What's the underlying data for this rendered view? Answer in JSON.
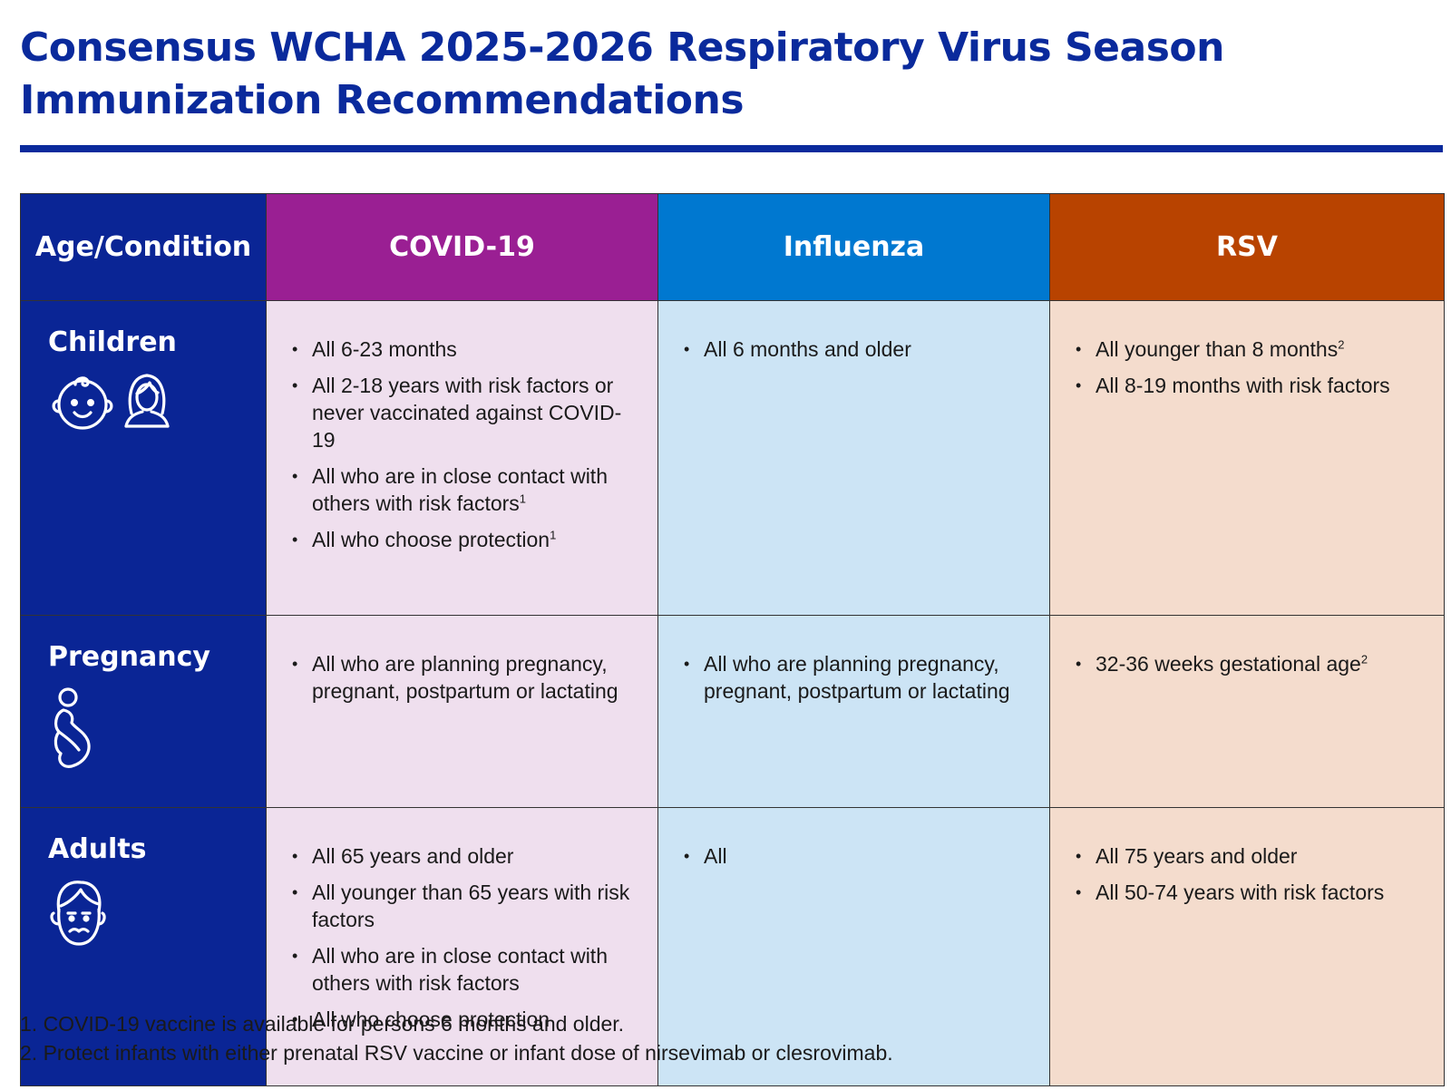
{
  "title": {
    "line1": "Consensus WCHA 2025-2026 Respiratory Virus Season",
    "line2": "Immunization Recommendations"
  },
  "colors": {
    "title": "#0a2a9c",
    "age_header": "#0a2595",
    "covid_header": "#9a1f93",
    "influenza_header": "#0078d0",
    "rsv_header": "#b84300",
    "covid_cell": "#efdfee",
    "influenza_cell": "#cce4f5",
    "rsv_cell": "#f4dccd"
  },
  "table": {
    "headers": {
      "age": "Age/Condition",
      "covid": "COVID-19",
      "influenza": "Influenza",
      "rsv": "RSV"
    },
    "rows": {
      "children": {
        "label": "Children",
        "icons": [
          "baby-face-icon",
          "child-girl-icon"
        ],
        "covid": [
          {
            "text": "All 6-23 months",
            "fn": ""
          },
          {
            "text": "All 2-18 years with risk factors or never vaccinated against COVID-19",
            "fn": ""
          },
          {
            "text": "All who are in close contact with others with risk factors",
            "fn": "1"
          },
          {
            "text": "All who choose protection",
            "fn": "1"
          }
        ],
        "influenza": [
          {
            "text": "All 6 months and older",
            "fn": ""
          }
        ],
        "rsv": [
          {
            "text": "All younger than 8 months",
            "fn": "2"
          },
          {
            "text": "All 8-19 months with risk factors",
            "fn": ""
          }
        ]
      },
      "pregnancy": {
        "label": "Pregnancy",
        "icons": [
          "pregnant-person-icon"
        ],
        "covid": [
          {
            "text": "All who are planning pregnancy, pregnant, postpartum or lactating",
            "fn": ""
          }
        ],
        "influenza": [
          {
            "text": "All who are planning pregnancy, pregnant, postpartum or lactating",
            "fn": ""
          }
        ],
        "rsv": [
          {
            "text": "32-36 weeks gestational age",
            "fn": "2"
          }
        ]
      },
      "adults": {
        "label": "Adults",
        "icons": [
          "adult-man-icon"
        ],
        "covid": [
          {
            "text": "All 65 years and older",
            "fn": ""
          },
          {
            "text": "All younger than 65 years with risk factors",
            "fn": ""
          },
          {
            "text": "All who are in close contact with others with risk factors",
            "fn": ""
          },
          {
            "text": "All who choose protection",
            "fn": ""
          }
        ],
        "influenza": [
          {
            "text": "All",
            "fn": ""
          }
        ],
        "rsv": [
          {
            "text": "All 75 years and older",
            "fn": ""
          },
          {
            "text": "All 50-74 years with risk factors",
            "fn": ""
          }
        ]
      }
    }
  },
  "footnotes": [
    "1. COVID-19 vaccine is available for persons 6 months and older.",
    "2. Protect infants with either prenatal RSV vaccine or infant dose of nirsevimab or clesrovimab."
  ]
}
